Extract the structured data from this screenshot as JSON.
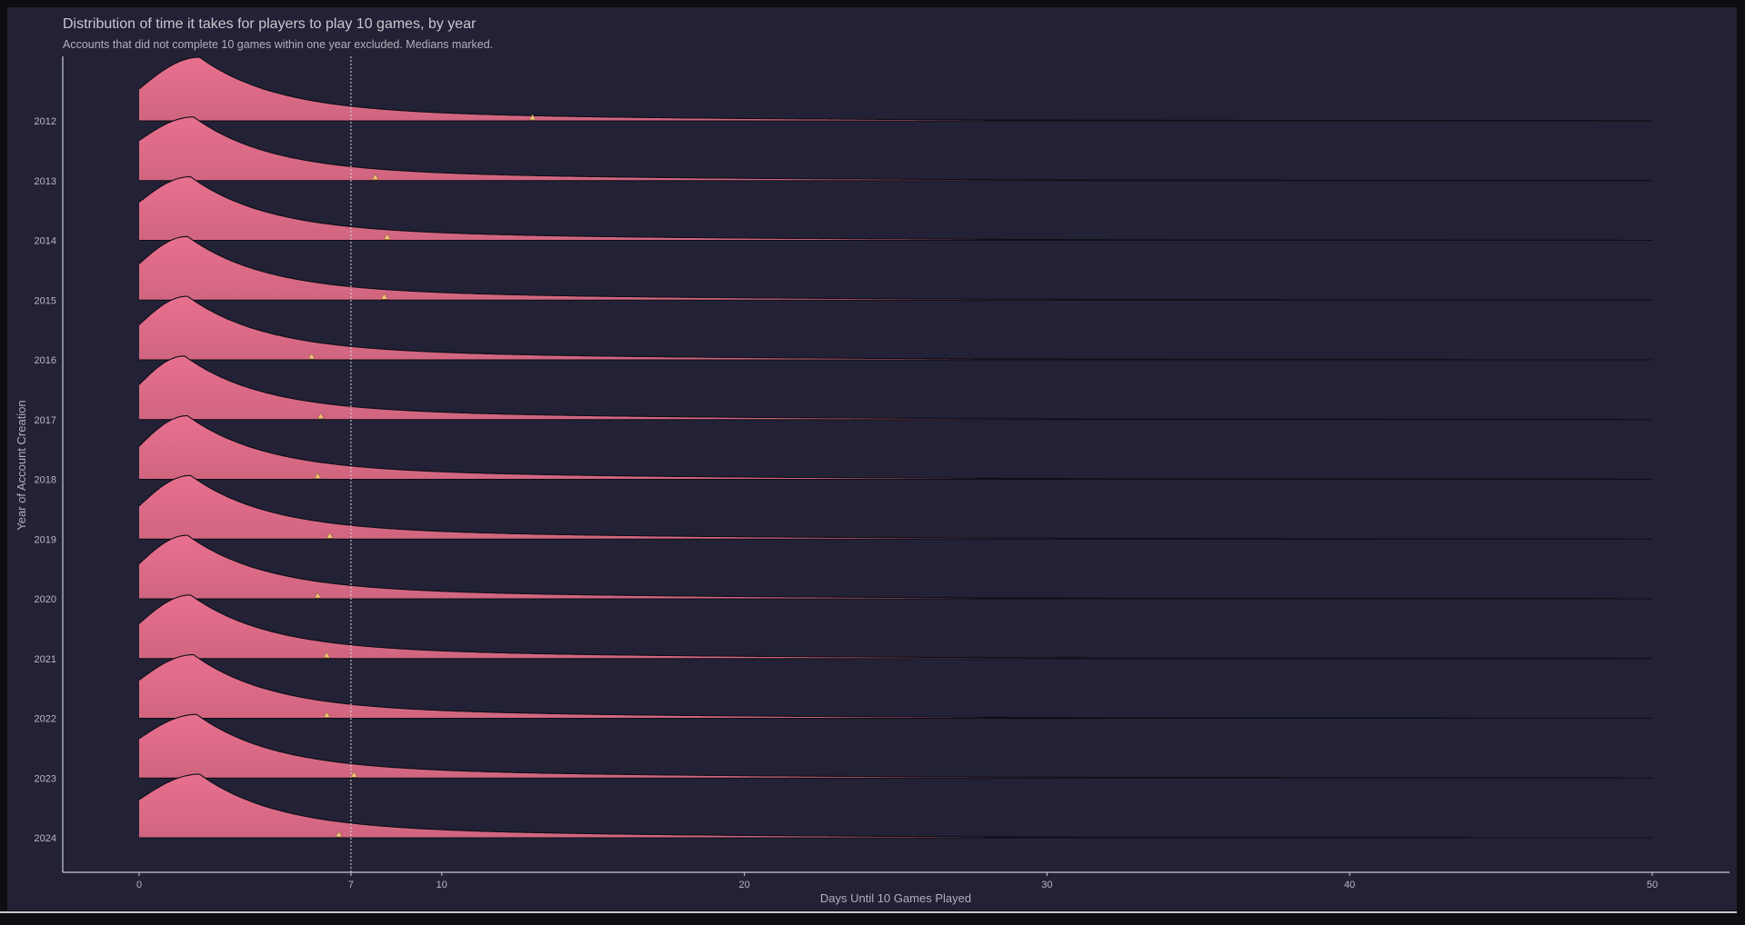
{
  "chart_data": {
    "type": "ridgeline",
    "title": "Distribution of time it takes for players to play 10 games, by year",
    "subtitle": "Accounts that did not complete 10 games within one year excluded. Medians marked.",
    "xlabel": "Days Until 10 Games Played",
    "ylabel": "Year of Account Creation",
    "xlim": [
      0,
      50
    ],
    "x_ticks": [
      "0",
      "7",
      "10",
      "20",
      "30",
      "40",
      "50"
    ],
    "reference_line_x": 7,
    "series": [
      {
        "year": "2012",
        "median": 13.0,
        "peak_day": 2.0,
        "start_density": 0.5,
        "tail_max_day": 50
      },
      {
        "year": "2013",
        "median": 7.8,
        "peak_day": 1.8,
        "start_density": 0.63,
        "tail_max_day": 50
      },
      {
        "year": "2014",
        "median": 8.2,
        "peak_day": 1.7,
        "start_density": 0.6,
        "tail_max_day": 49
      },
      {
        "year": "2015",
        "median": 8.1,
        "peak_day": 1.6,
        "start_density": 0.57,
        "tail_max_day": 50
      },
      {
        "year": "2016",
        "median": 5.7,
        "peak_day": 1.6,
        "start_density": 0.55,
        "tail_max_day": 44
      },
      {
        "year": "2017",
        "median": 6.0,
        "peak_day": 1.5,
        "start_density": 0.55,
        "tail_max_day": 49
      },
      {
        "year": "2018",
        "median": 5.9,
        "peak_day": 1.6,
        "start_density": 0.52,
        "tail_max_day": 49
      },
      {
        "year": "2019",
        "median": 6.3,
        "peak_day": 1.7,
        "start_density": 0.52,
        "tail_max_day": 49
      },
      {
        "year": "2020",
        "median": 5.9,
        "peak_day": 1.6,
        "start_density": 0.55,
        "tail_max_day": 49
      },
      {
        "year": "2021",
        "median": 6.2,
        "peak_day": 1.7,
        "start_density": 0.55,
        "tail_max_day": 49
      },
      {
        "year": "2022",
        "median": 6.2,
        "peak_day": 1.8,
        "start_density": 0.6,
        "tail_max_day": 44
      },
      {
        "year": "2023",
        "median": 7.1,
        "peak_day": 1.9,
        "start_density": 0.62,
        "tail_max_day": 49
      },
      {
        "year": "2024",
        "median": 6.6,
        "peak_day": 2.0,
        "start_density": 0.6,
        "tail_max_day": 44
      }
    ],
    "colors": {
      "fill": "#d0657f",
      "fill_peak": "#e8708f",
      "outline": "#0f0f17",
      "median_marker": "#f2c27a",
      "reference_line": "#d6d6e0",
      "axis": "#c9c9d2",
      "background": "#222135"
    },
    "grid": false
  }
}
